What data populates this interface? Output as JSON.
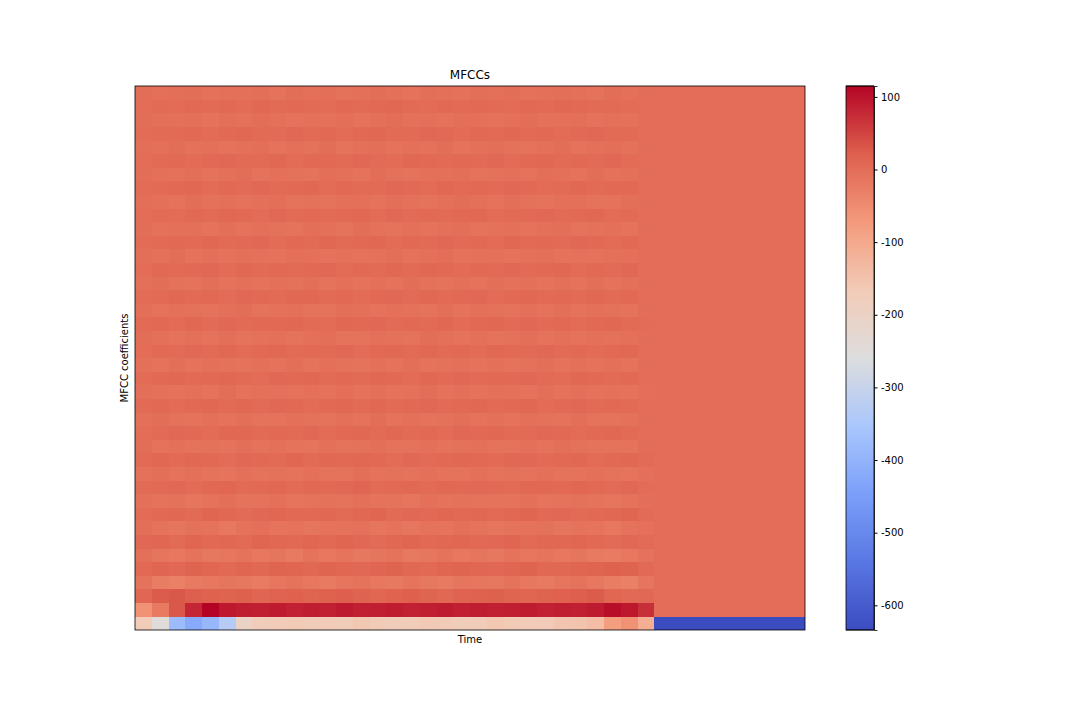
{
  "chart_data": {
    "type": "heatmap",
    "title": "MFCCs",
    "x_label": "Time",
    "y_label": "MFCC coefficients",
    "tick_labels": false,
    "values": [
      [
        -170,
        -250,
        -380,
        -420,
        -390,
        -330,
        -200,
        -175,
        -170,
        -165,
        -170,
        -168,
        -172,
        -160,
        -165,
        -175,
        -170,
        -162,
        -168,
        -175,
        -170,
        -160,
        -165,
        -172,
        -168,
        -155,
        -150,
        -140,
        -80,
        -60,
        -110,
        -634,
        -634,
        -634,
        -634,
        -634,
        -634,
        -634,
        -634,
        -634
      ],
      [
        -60,
        -20,
        30,
        80,
        115,
        95,
        90,
        88,
        92,
        85,
        90,
        87,
        93,
        86,
        89,
        91,
        85,
        88,
        92,
        87,
        90,
        86,
        88,
        91,
        85,
        89,
        87,
        92,
        105,
        95,
        70,
        0,
        0,
        0,
        0,
        0,
        0,
        0,
        0,
        0
      ],
      [
        10,
        25,
        30,
        22,
        18,
        15,
        20,
        12,
        16,
        19,
        14,
        18,
        22,
        15,
        10,
        17,
        21,
        13,
        9,
        16,
        18,
        20,
        14,
        11,
        15,
        19,
        22,
        25,
        10,
        5,
        8,
        0,
        0,
        0,
        0,
        0,
        0,
        0,
        0,
        0
      ],
      [
        -10,
        -25,
        -30,
        -20,
        -15,
        -12,
        -18,
        -22,
        -14,
        -10,
        -16,
        -20,
        -13,
        -9,
        -15,
        -19,
        -11,
        -17,
        -21,
        -12,
        -14,
        -18,
        -10,
        -15,
        -20,
        -13,
        -9,
        -16,
        -25,
        -30,
        -12,
        0,
        0,
        0,
        0,
        0,
        0,
        0,
        0,
        0
      ],
      [
        5,
        12,
        8,
        15,
        10,
        6,
        12,
        9,
        14,
        11,
        7,
        13,
        10,
        8,
        12,
        15,
        9,
        6,
        11,
        14,
        10,
        8,
        12,
        15,
        9,
        7,
        11,
        13,
        18,
        15,
        6,
        0,
        0,
        0,
        0,
        0,
        0,
        0,
        0,
        0
      ],
      [
        -5,
        -12,
        -15,
        -8,
        -18,
        -14,
        -10,
        -16,
        -12,
        -20,
        -9,
        -15,
        -11,
        -17,
        -13,
        -8,
        -19,
        -14,
        -10,
        -16,
        -12,
        -18,
        -9,
        -14,
        -11,
        -16,
        -13,
        -20,
        -22,
        -15,
        -8,
        0,
        0,
        0,
        0,
        0,
        0,
        0,
        0,
        0
      ],
      [
        8,
        10,
        4,
        12,
        6,
        9,
        3,
        11,
        7,
        5,
        10,
        6,
        12,
        8,
        4,
        9,
        11,
        5,
        7,
        10,
        6,
        8,
        12,
        4,
        9,
        7,
        10,
        5,
        3,
        8,
        4,
        0,
        0,
        0,
        0,
        0,
        0,
        0,
        0,
        0
      ],
      [
        -3,
        -8,
        -12,
        -6,
        -10,
        -15,
        -9,
        -5,
        -11,
        -7,
        -13,
        -8,
        -10,
        -6,
        -12,
        -9,
        -14,
        -7,
        -11,
        -5,
        -9,
        -12,
        -8,
        -10,
        -6,
        -13,
        -7,
        -11,
        -15,
        -10,
        -4,
        0,
        0,
        0,
        0,
        0,
        0,
        0,
        0,
        0
      ],
      [
        2,
        6,
        9,
        4,
        11,
        7,
        3,
        8,
        10,
        5,
        6,
        9,
        4,
        7,
        12,
        3,
        8,
        5,
        10,
        6,
        9,
        4,
        7,
        11,
        5,
        8,
        3,
        6,
        9,
        12,
        3,
        0,
        0,
        0,
        0,
        0,
        0,
        0,
        0,
        0
      ],
      [
        -4,
        -9,
        -6,
        -12,
        -8,
        -3,
        -10,
        -7,
        -5,
        -11,
        -8,
        -6,
        -9,
        -4,
        -10,
        -7,
        -12,
        -5,
        -8,
        -6,
        -10,
        -7,
        -9,
        -5,
        -11,
        -8,
        -6,
        -9,
        -13,
        -8,
        -3,
        0,
        0,
        0,
        0,
        0,
        0,
        0,
        0,
        0
      ],
      [
        3,
        5,
        8,
        2,
        7,
        10,
        4,
        6,
        9,
        3,
        7,
        5,
        8,
        11,
        4,
        6,
        9,
        3,
        7,
        5,
        8,
        6,
        4,
        9,
        7,
        5,
        10,
        6,
        4,
        8,
        2,
        0,
        0,
        0,
        0,
        0,
        0,
        0,
        0,
        0
      ],
      [
        -6,
        -3,
        -9,
        -5,
        -7,
        -11,
        -4,
        -8,
        -6,
        -10,
        -5,
        -9,
        -7,
        -3,
        -8,
        -6,
        -10,
        -4,
        -7,
        -9,
        -5,
        -8,
        -6,
        -10,
        -4,
        -7,
        -9,
        -5,
        -8,
        -11,
        -4,
        0,
        0,
        0,
        0,
        0,
        0,
        0,
        0,
        0
      ],
      [
        4,
        7,
        3,
        9,
        5,
        2,
        8,
        6,
        4,
        10,
        3,
        7,
        5,
        9,
        6,
        2,
        8,
        4,
        6,
        9,
        5,
        3,
        7,
        8,
        4,
        6,
        9,
        2,
        5,
        7,
        3,
        0,
        0,
        0,
        0,
        0,
        0,
        0,
        0,
        0
      ],
      [
        -2,
        -7,
        -4,
        -10,
        -6,
        -8,
        -3,
        -9,
        -5,
        -7,
        -11,
        -4,
        -8,
        -6,
        -3,
        -9,
        -7,
        -5,
        -10,
        -6,
        -4,
        -8,
        -7,
        -5,
        -9,
        -3,
        -6,
        -8,
        -10,
        -7,
        -2,
        0,
        0,
        0,
        0,
        0,
        0,
        0,
        0,
        0
      ],
      [
        1,
        4,
        8,
        5,
        2,
        7,
        9,
        3,
        6,
        4,
        8,
        2,
        5,
        7,
        3,
        9,
        4,
        6,
        2,
        8,
        5,
        7,
        3,
        4,
        8,
        6,
        2,
        5,
        9,
        4,
        1,
        0,
        0,
        0,
        0,
        0,
        0,
        0,
        0,
        0
      ],
      [
        -5,
        -2,
        -6,
        -9,
        -4,
        -7,
        -3,
        -8,
        -10,
        -5,
        -6,
        -9,
        -4,
        -7,
        -2,
        -8,
        -5,
        -10,
        -6,
        -3,
        -7,
        -5,
        -9,
        -4,
        -6,
        -8,
        -3,
        -7,
        -9,
        -6,
        -2,
        0,
        0,
        0,
        0,
        0,
        0,
        0,
        0,
        0
      ],
      [
        3,
        6,
        2,
        5,
        9,
        4,
        7,
        3,
        8,
        5,
        2,
        6,
        9,
        4,
        7,
        3,
        5,
        8,
        4,
        6,
        9,
        3,
        5,
        7,
        2,
        6,
        8,
        4,
        6,
        3,
        1,
        0,
        0,
        0,
        0,
        0,
        0,
        0,
        0,
        0
      ],
      [
        -3,
        -6,
        -9,
        -4,
        -7,
        -2,
        -8,
        -5,
        -6,
        -10,
        -4,
        -7,
        -3,
        -9,
        -5,
        -8,
        -6,
        -2,
        -7,
        -5,
        -9,
        -4,
        -6,
        -8,
        -3,
        -7,
        -5,
        -9,
        -6,
        -8,
        -3,
        0,
        0,
        0,
        0,
        0,
        0,
        0,
        0,
        0
      ],
      [
        2,
        5,
        7,
        3,
        6,
        9,
        4,
        2,
        8,
        5,
        7,
        3,
        6,
        4,
        9,
        5,
        2,
        7,
        4,
        8,
        3,
        6,
        5,
        8,
        4,
        2,
        7,
        5,
        3,
        6,
        1,
        0,
        0,
        0,
        0,
        0,
        0,
        0,
        0,
        0
      ],
      [
        -4,
        -7,
        -3,
        -8,
        -5,
        -6,
        -9,
        -4,
        -7,
        -3,
        -8,
        -5,
        -6,
        -9,
        -4,
        -7,
        -3,
        -8,
        -6,
        -5,
        -7,
        -4,
        -9,
        -6,
        -3,
        -8,
        -5,
        -7,
        -4,
        -9,
        -2,
        0,
        0,
        0,
        0,
        0,
        0,
        0,
        0,
        0
      ],
      [
        1,
        6,
        3,
        8,
        4,
        7,
        2,
        5,
        9,
        3,
        6,
        4,
        8,
        2,
        5,
        7,
        3,
        9,
        4,
        6,
        2,
        7,
        5,
        3,
        8,
        4,
        6,
        2,
        5,
        7,
        1,
        0,
        0,
        0,
        0,
        0,
        0,
        0,
        0,
        0
      ],
      [
        -2,
        -5,
        -8,
        -4,
        -7,
        -3,
        -9,
        -6,
        -4,
        -8,
        -5,
        -3,
        -7,
        -9,
        -4,
        -6,
        -8,
        -2,
        -5,
        -7,
        -4,
        -9,
        -6,
        -3,
        -7,
        -5,
        -8,
        -4,
        -6,
        -5,
        -1,
        0,
        0,
        0,
        0,
        0,
        0,
        0,
        0,
        0
      ],
      [
        3,
        5,
        2,
        7,
        4,
        8,
        3,
        6,
        5,
        9,
        4,
        2,
        7,
        5,
        8,
        3,
        6,
        4,
        9,
        2,
        5,
        7,
        3,
        8,
        4,
        6,
        2,
        5,
        7,
        4,
        2,
        0,
        0,
        0,
        0,
        0,
        0,
        0,
        0,
        0
      ],
      [
        -3,
        -7,
        -4,
        -6,
        -9,
        -5,
        -2,
        -8,
        -6,
        -4,
        -7,
        -9,
        -3,
        -5,
        -8,
        -4,
        -6,
        -7,
        -3,
        -9,
        -5,
        -6,
        -8,
        -4,
        -7,
        -3,
        -9,
        -5,
        -6,
        -8,
        -2,
        0,
        0,
        0,
        0,
        0,
        0,
        0,
        0,
        0
      ],
      [
        2,
        4,
        7,
        3,
        6,
        2,
        8,
        5,
        3,
        7,
        9,
        4,
        6,
        2,
        5,
        8,
        3,
        7,
        4,
        6,
        8,
        2,
        5,
        7,
        3,
        6,
        4,
        9,
        3,
        5,
        1,
        0,
        0,
        0,
        0,
        0,
        0,
        0,
        0,
        0
      ],
      [
        -4,
        -2,
        -6,
        -8,
        -3,
        -7,
        -5,
        -9,
        -4,
        -6,
        -3,
        -8,
        -5,
        -7,
        -4,
        -9,
        -2,
        -6,
        -8,
        -5,
        -7,
        -3,
        -6,
        -4,
        -9,
        -5,
        -8,
        -3,
        -7,
        -4,
        -2,
        0,
        0,
        0,
        0,
        0,
        0,
        0,
        0,
        0
      ],
      [
        1,
        5,
        3,
        6,
        8,
        2,
        7,
        4,
        5,
        3,
        6,
        8,
        2,
        5,
        4,
        7,
        3,
        9,
        5,
        2,
        6,
        4,
        8,
        3,
        5,
        7,
        2,
        6,
        4,
        8,
        1,
        0,
        0,
        0,
        0,
        0,
        0,
        0,
        0,
        0
      ],
      [
        -3,
        -6,
        -2,
        -7,
        -5,
        -8,
        -4,
        -6,
        -9,
        -3,
        -5,
        -7,
        -4,
        -8,
        -6,
        -3,
        -9,
        -5,
        -2,
        -7,
        -6,
        -4,
        -8,
        -5,
        -3,
        -7,
        -6,
        -9,
        -4,
        -5,
        -2,
        0,
        0,
        0,
        0,
        0,
        0,
        0,
        0,
        0
      ],
      [
        2,
        3,
        6,
        4,
        7,
        3,
        5,
        8,
        2,
        6,
        4,
        7,
        3,
        5,
        9,
        2,
        6,
        4,
        8,
        3,
        5,
        2,
        7,
        4,
        6,
        3,
        8,
        5,
        2,
        6,
        1,
        0,
        0,
        0,
        0,
        0,
        0,
        0,
        0,
        0
      ],
      [
        -2,
        -6,
        -4,
        -5,
        -8,
        -3,
        -7,
        -4,
        -6,
        -9,
        -3,
        -5,
        -8,
        -2,
        -6,
        -7,
        -4,
        -9,
        -5,
        -3,
        -8,
        -6,
        -4,
        -7,
        -5,
        -3,
        -9,
        -6,
        -4,
        -7,
        -1,
        0,
        0,
        0,
        0,
        0,
        0,
        0,
        0,
        0
      ],
      [
        1,
        4,
        2,
        6,
        3,
        7,
        5,
        2,
        8,
        4,
        6,
        3,
        5,
        7,
        2,
        8,
        4,
        6,
        3,
        5,
        7,
        2,
        4,
        6,
        8,
        3,
        5,
        7,
        2,
        4,
        1,
        0,
        0,
        0,
        0,
        0,
        0,
        0,
        0,
        0
      ],
      [
        -3,
        -5,
        -7,
        -2,
        -6,
        -4,
        -8,
        -5,
        -3,
        -7,
        -6,
        -9,
        -4,
        -5,
        -7,
        -3,
        -6,
        -8,
        -4,
        -2,
        -5,
        -7,
        -3,
        -6,
        -8,
        -4,
        -5,
        -7,
        -9,
        -3,
        -2,
        0,
        0,
        0,
        0,
        0,
        0,
        0,
        0,
        0
      ],
      [
        2,
        3,
        5,
        7,
        2,
        6,
        4,
        8,
        3,
        5,
        7,
        2,
        6,
        4,
        3,
        8,
        5,
        2,
        7,
        4,
        6,
        3,
        8,
        5,
        2,
        4,
        7,
        3,
        6,
        5,
        1,
        0,
        0,
        0,
        0,
        0,
        0,
        0,
        0,
        0
      ],
      [
        -2,
        -4,
        -6,
        -3,
        -8,
        -5,
        -2,
        -7,
        -4,
        -6,
        -8,
        -3,
        -5,
        -7,
        -2,
        -6,
        -9,
        -4,
        -5,
        -3,
        -7,
        -6,
        -4,
        -8,
        -3,
        -5,
        -7,
        -2,
        -6,
        -4,
        -1,
        0,
        0,
        0,
        0,
        0,
        0,
        0,
        0,
        0
      ],
      [
        1,
        3,
        6,
        2,
        5,
        8,
        3,
        4,
        7,
        2,
        5,
        6,
        3,
        8,
        4,
        2,
        7,
        5,
        3,
        6,
        4,
        8,
        2,
        5,
        7,
        3,
        6,
        4,
        8,
        2,
        1,
        0,
        0,
        0,
        0,
        0,
        0,
        0,
        0,
        0
      ],
      [
        -3,
        -5,
        -2,
        -6,
        -4,
        -7,
        -5,
        -3,
        -8,
        -4,
        -6,
        -2,
        -7,
        -5,
        -3,
        -8,
        -4,
        -6,
        -2,
        -7,
        -5,
        -3,
        -6,
        -8,
        -4,
        -2,
        -7,
        -5,
        -3,
        -6,
        -2,
        0,
        0,
        0,
        0,
        0,
        0,
        0,
        0,
        0
      ],
      [
        2,
        4,
        3,
        6,
        2,
        5,
        7,
        3,
        4,
        8,
        3,
        5,
        2,
        6,
        7,
        4,
        3,
        8,
        5,
        2,
        6,
        4,
        7,
        3,
        5,
        2,
        6,
        8,
        3,
        4,
        1,
        0,
        0,
        0,
        0,
        0,
        0,
        0,
        0,
        0
      ],
      [
        -2,
        -3,
        -5,
        -4,
        -7,
        -3,
        -6,
        -2,
        -5,
        -8,
        -4,
        -6,
        -3,
        -7,
        -5,
        -2,
        -6,
        -4,
        -8,
        -3,
        -5,
        -7,
        -4,
        -2,
        -6,
        -5,
        -3,
        -7,
        -4,
        -6,
        -1,
        0,
        0,
        0,
        0,
        0,
        0,
        0,
        0,
        0
      ],
      [
        1,
        3,
        2,
        5,
        4,
        6,
        2,
        7,
        3,
        5,
        4,
        2,
        6,
        3,
        5,
        7,
        4,
        2,
        6,
        3,
        5,
        4,
        2,
        6,
        3,
        7,
        5,
        3,
        4,
        2,
        1,
        0,
        0,
        0,
        0,
        0,
        0,
        0,
        0,
        0
      ],
      [
        -1,
        -4,
        -3,
        -2,
        -6,
        -4,
        -5,
        -3,
        -7,
        -2,
        -5,
        -3,
        -6,
        -4,
        -2,
        -5,
        -7,
        -3,
        -4,
        -6,
        -3,
        -5,
        -2,
        -6,
        -4,
        -3,
        -5,
        -7,
        -2,
        -4,
        -1,
        0,
        0,
        0,
        0,
        0,
        0,
        0,
        0,
        0
      ]
    ],
    "colorbar": {
      "range": [
        -634,
        115
      ],
      "ticks": [
        -600,
        -500,
        -400,
        -300,
        -200,
        -100,
        0,
        100
      ]
    }
  }
}
